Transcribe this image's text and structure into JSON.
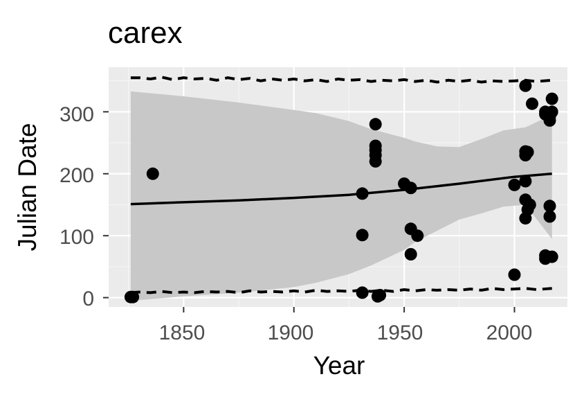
{
  "chart_data": {
    "type": "scatter",
    "title": "carex",
    "xlabel": "Year",
    "ylabel": "Julian Date",
    "xlim": [
      1816,
      2024
    ],
    "ylim": [
      -15,
      372
    ],
    "x_ticks": [
      1850,
      1900,
      1950,
      2000
    ],
    "y_ticks": [
      0,
      100,
      200,
      300
    ],
    "x_tick_labels": [
      "1850",
      "1900",
      "1950",
      "2000"
    ],
    "y_tick_labels": [
      "0",
      "100",
      "200",
      "300"
    ],
    "grid": true,
    "legend": "none",
    "colors": {
      "panel": "#ebebeb",
      "grid_major": "#ffffff",
      "ribbon": "#c8c8c8",
      "points": "#000000",
      "line": "#000000"
    },
    "points": [
      {
        "x": 1826,
        "y": 1
      },
      {
        "x": 1827,
        "y": 1
      },
      {
        "x": 1836,
        "y": 200
      },
      {
        "x": 1931,
        "y": 168
      },
      {
        "x": 1931,
        "y": 101
      },
      {
        "x": 1931,
        "y": 8
      },
      {
        "x": 1937,
        "y": 280
      },
      {
        "x": 1937,
        "y": 245
      },
      {
        "x": 1937,
        "y": 238
      },
      {
        "x": 1937,
        "y": 230
      },
      {
        "x": 1937,
        "y": 220
      },
      {
        "x": 1938,
        "y": 2
      },
      {
        "x": 1939,
        "y": 4
      },
      {
        "x": 1950,
        "y": 184
      },
      {
        "x": 1953,
        "y": 177
      },
      {
        "x": 1953,
        "y": 111
      },
      {
        "x": 1953,
        "y": 70
      },
      {
        "x": 1956,
        "y": 100
      },
      {
        "x": 2000,
        "y": 182
      },
      {
        "x": 2000,
        "y": 37
      },
      {
        "x": 2005,
        "y": 342
      },
      {
        "x": 2005,
        "y": 236
      },
      {
        "x": 2005,
        "y": 230
      },
      {
        "x": 2005,
        "y": 188
      },
      {
        "x": 2005,
        "y": 158
      },
      {
        "x": 2005,
        "y": 128
      },
      {
        "x": 2006,
        "y": 235
      },
      {
        "x": 2006,
        "y": 142
      },
      {
        "x": 2007,
        "y": 150
      },
      {
        "x": 2008,
        "y": 313
      },
      {
        "x": 2014,
        "y": 300
      },
      {
        "x": 2014,
        "y": 296
      },
      {
        "x": 2014,
        "y": 68
      },
      {
        "x": 2014,
        "y": 63
      },
      {
        "x": 2016,
        "y": 292
      },
      {
        "x": 2016,
        "y": 286
      },
      {
        "x": 2016,
        "y": 148
      },
      {
        "x": 2016,
        "y": 131
      },
      {
        "x": 2017,
        "y": 321
      },
      {
        "x": 2017,
        "y": 300
      },
      {
        "x": 2017,
        "y": 66
      }
    ],
    "trend": {
      "x": [
        1826,
        1850,
        1875,
        1900,
        1925,
        1950,
        1975,
        2000,
        2017
      ],
      "y": [
        151,
        154,
        157,
        161,
        166,
        174,
        184,
        195,
        200
      ]
    },
    "confidence_band": {
      "x": [
        1826,
        1850,
        1875,
        1900,
        1910,
        1925,
        1935,
        1950,
        1955,
        1965,
        1975,
        1985,
        1995,
        2005,
        2017
      ],
      "lower": [
        -5,
        2,
        8,
        17,
        24,
        38,
        52,
        77,
        90,
        108,
        126,
        136,
        147,
        150,
        95
      ],
      "upper": [
        333,
        325,
        315,
        303,
        298,
        285,
        272,
        258,
        252,
        244,
        243,
        256,
        270,
        275,
        295
      ]
    },
    "upper_dashed": {
      "x": [
        1826,
        1830,
        1835,
        1840,
        1845,
        1850,
        1855,
        1860,
        1865,
        1870,
        1875,
        1880,
        1885,
        1890,
        1895,
        1900,
        1905,
        1910,
        1915,
        1920,
        1925,
        1930,
        1935,
        1940,
        1945,
        1950,
        1955,
        1960,
        1965,
        1970,
        1975,
        1980,
        1985,
        1990,
        1995,
        2000,
        2005,
        2010,
        2017
      ],
      "y": [
        355,
        355,
        353,
        356,
        352,
        355,
        353,
        354,
        351,
        355,
        352,
        354,
        350,
        353,
        351,
        353,
        350,
        352,
        349,
        353,
        351,
        352,
        349,
        351,
        350,
        352,
        349,
        351,
        348,
        351,
        349,
        351,
        348,
        350,
        349,
        350,
        351,
        349,
        351
      ]
    },
    "lower_dashed": {
      "x": [
        1826,
        1830,
        1835,
        1840,
        1845,
        1850,
        1855,
        1860,
        1865,
        1870,
        1875,
        1880,
        1885,
        1890,
        1895,
        1900,
        1905,
        1910,
        1915,
        1920,
        1925,
        1930,
        1935,
        1940,
        1945,
        1950,
        1955,
        1960,
        1965,
        1970,
        1975,
        1980,
        1985,
        1990,
        1995,
        2000,
        2005,
        2010,
        2017
      ],
      "y": [
        8,
        9,
        8,
        10,
        8,
        9,
        8,
        10,
        9,
        10,
        8,
        11,
        9,
        10,
        9,
        11,
        9,
        12,
        10,
        11,
        10,
        12,
        10,
        12,
        10,
        13,
        11,
        13,
        12,
        13,
        12,
        14,
        12,
        15,
        13,
        14,
        15,
        13,
        15
      ]
    }
  }
}
